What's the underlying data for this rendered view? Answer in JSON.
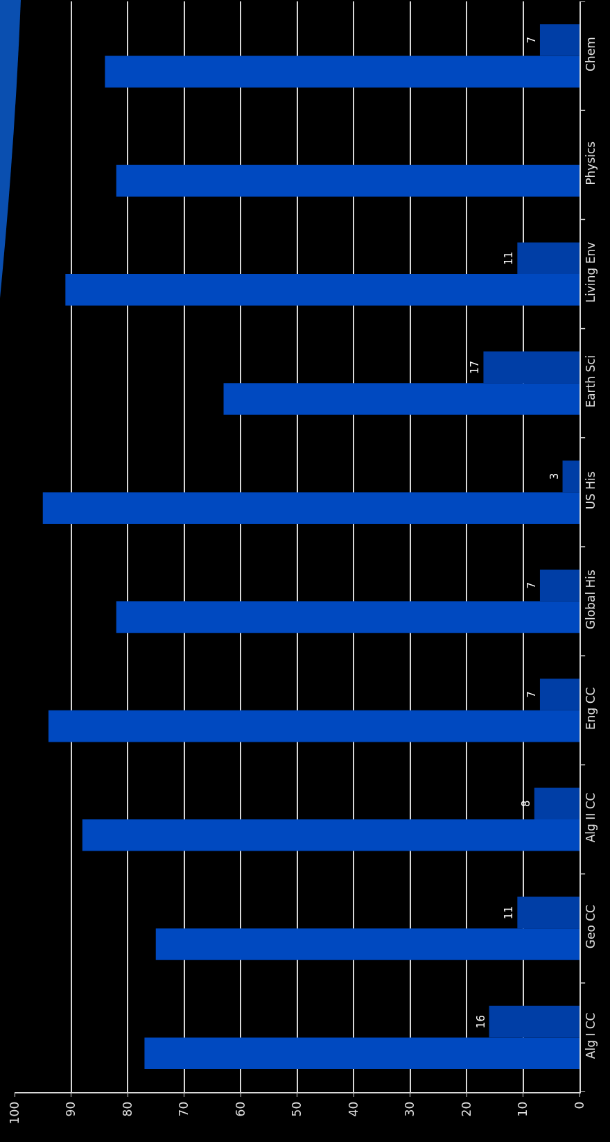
{
  "chart_data": {
    "type": "bar",
    "orientation": "horizontal",
    "categories": [
      "Chem",
      "Physics",
      "Living Env",
      "Earth Sci",
      "US His",
      "Global His",
      "Eng CC",
      "Alg II CC",
      "Geo CC",
      "Alg I CC"
    ],
    "series": [
      {
        "color": "#003ea6",
        "values": [
          7,
          null,
          11,
          17,
          3,
          7,
          7,
          8,
          11,
          16
        ],
        "value_labels": [
          "7",
          null,
          "11",
          "17",
          "3",
          "7",
          "7",
          "8",
          "11",
          "16"
        ]
      },
      {
        "color": "#0049c0",
        "values": [
          84,
          82,
          91,
          63,
          95,
          82,
          94,
          88,
          75,
          77
        ]
      }
    ],
    "xlim": [
      100,
      0
    ],
    "xticks": [
      0,
      10,
      20,
      30,
      40,
      50,
      60,
      70,
      80,
      90,
      100
    ],
    "grid": "x"
  }
}
